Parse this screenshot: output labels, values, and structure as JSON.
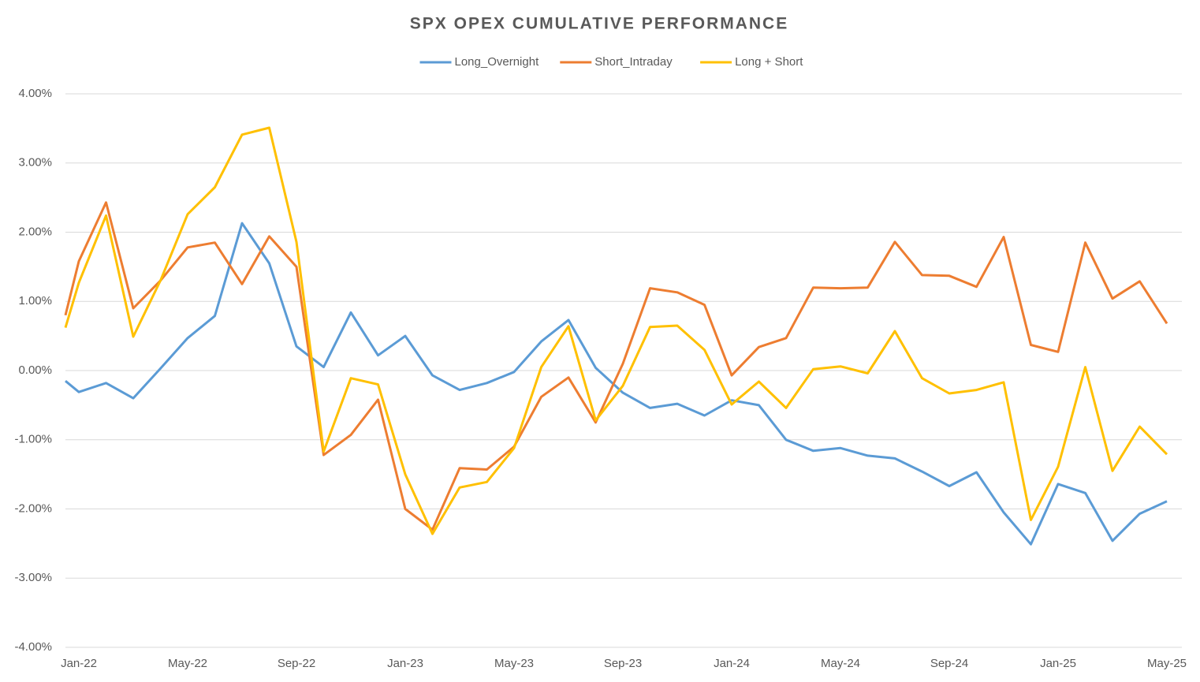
{
  "chart_data": {
    "type": "line",
    "title": "SPX OPEX CUMULATIVE PERFORMANCE",
    "categories": [
      null,
      "Jan-22",
      null,
      null,
      null,
      "May-22",
      null,
      null,
      null,
      "Sep-22",
      null,
      null,
      null,
      "Jan-23",
      null,
      null,
      null,
      "May-23",
      null,
      null,
      null,
      "Sep-23",
      null,
      null,
      null,
      "Jan-24",
      null,
      null,
      null,
      "May-24",
      null,
      null,
      null,
      "Sep-24",
      null,
      null,
      null,
      "Jan-25",
      null,
      null,
      null,
      "May-25"
    ],
    "series": [
      {
        "name": "Long_Overnight",
        "color": "#5b9bd5",
        "values": [
          -0.15,
          -0.31,
          -0.18,
          -0.4,
          0.03,
          0.47,
          0.79,
          2.13,
          1.55,
          0.35,
          0.05,
          0.84,
          0.22,
          0.5,
          -0.07,
          -0.28,
          -0.18,
          -0.02,
          0.42,
          0.73,
          0.04,
          -0.32,
          -0.54,
          -0.48,
          -0.65,
          -0.43,
          -0.5,
          -1.0,
          -1.16,
          -1.12,
          -1.23,
          -1.27,
          -1.46,
          -1.67,
          -1.47,
          -2.05,
          -2.51,
          -1.64,
          -1.77,
          -2.46,
          -2.07,
          -1.89
        ]
      },
      {
        "name": "Short_Intraday",
        "color": "#ed7d31",
        "values": [
          0.8,
          1.58,
          2.43,
          0.9,
          1.3,
          1.78,
          1.85,
          1.25,
          1.94,
          1.5,
          -1.22,
          -0.93,
          -0.42,
          -2.0,
          -2.3,
          -1.41,
          -1.43,
          -1.1,
          -0.38,
          -0.1,
          -0.75,
          0.1,
          1.19,
          1.13,
          0.95,
          -0.07,
          0.34,
          0.47,
          1.2,
          1.19,
          1.2,
          1.86,
          1.38,
          1.37,
          1.21,
          1.93,
          0.37,
          0.27,
          1.85,
          1.04,
          1.29,
          0.68
        ]
      },
      {
        "name": "Long + Short",
        "color": "#ffc000",
        "values": [
          0.62,
          1.27,
          2.24,
          0.49,
          1.3,
          2.26,
          2.65,
          3.41,
          3.51,
          1.86,
          -1.17,
          -0.11,
          -0.2,
          -1.5,
          -2.36,
          -1.69,
          -1.61,
          -1.12,
          0.05,
          0.64,
          -0.72,
          -0.22,
          0.63,
          0.65,
          0.3,
          -0.49,
          -0.16,
          -0.54,
          0.02,
          0.06,
          -0.04,
          0.57,
          -0.11,
          -0.33,
          -0.28,
          -0.17,
          -2.16,
          -1.39,
          0.05,
          -1.45,
          -0.81,
          -1.21
        ]
      }
    ],
    "ylim": [
      -4,
      4
    ],
    "yticks": [
      {
        "value": -4,
        "label": "-4.00%"
      },
      {
        "value": -3,
        "label": "-3.00%"
      },
      {
        "value": -2,
        "label": "-2.00%"
      },
      {
        "value": -1,
        "label": "-1.00%"
      },
      {
        "value": 0,
        "label": "0.00%"
      },
      {
        "value": 1,
        "label": "1.00%"
      },
      {
        "value": 2,
        "label": "2.00%"
      },
      {
        "value": 3,
        "label": "3.00%"
      },
      {
        "value": 4,
        "label": "4.00%"
      }
    ],
    "grid": true,
    "legend": "top"
  }
}
